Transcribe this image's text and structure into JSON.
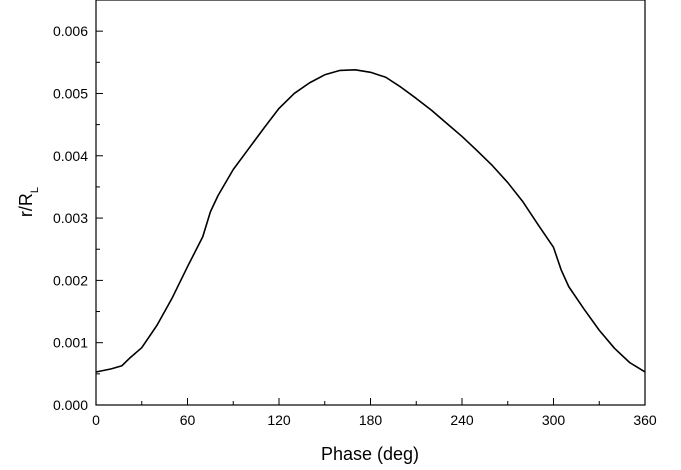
{
  "chart_data": {
    "type": "line",
    "title": "",
    "xlabel": "Phase (deg)",
    "ylabel": {
      "main": "r/R",
      "subscript": "L"
    },
    "xlim": [
      0,
      360
    ],
    "ylim": [
      0,
      0.0065
    ],
    "x_ticks": [
      0,
      60,
      120,
      180,
      240,
      300,
      360
    ],
    "x_tick_labels": [
      "0",
      "60",
      "120",
      "180",
      "240",
      "300",
      "360"
    ],
    "y_ticks": [
      0,
      0.001,
      0.002,
      0.003,
      0.004,
      0.005,
      0.006
    ],
    "y_tick_labels": [
      "0.000",
      "0.001",
      "0.002",
      "0.003",
      "0.004",
      "0.005",
      "0.006"
    ],
    "grid": false,
    "line_color": "#000000",
    "series": [
      {
        "x": [
          0,
          10,
          17,
          22,
          30,
          40,
          50,
          60,
          70,
          75,
          80,
          90,
          100,
          110,
          120,
          130,
          140,
          150,
          160,
          170,
          180,
          190,
          200,
          210,
          220,
          230,
          240,
          250,
          260,
          270,
          280,
          290,
          300,
          305,
          310,
          320,
          330,
          340,
          350,
          360
        ],
        "values": [
          0.00053,
          0.00058,
          0.00063,
          0.00075,
          0.00092,
          0.00128,
          0.00172,
          0.00222,
          0.0027,
          0.0031,
          0.00336,
          0.00378,
          0.00411,
          0.00444,
          0.00476,
          0.005,
          0.00517,
          0.0053,
          0.00537,
          0.00538,
          0.00534,
          0.00526,
          0.0051,
          0.00492,
          0.00473,
          0.00452,
          0.00431,
          0.00408,
          0.00384,
          0.00357,
          0.00326,
          0.00289,
          0.00253,
          0.00217,
          0.0019,
          0.00154,
          0.0012,
          0.00091,
          0.00068,
          0.00053
        ]
      }
    ]
  }
}
